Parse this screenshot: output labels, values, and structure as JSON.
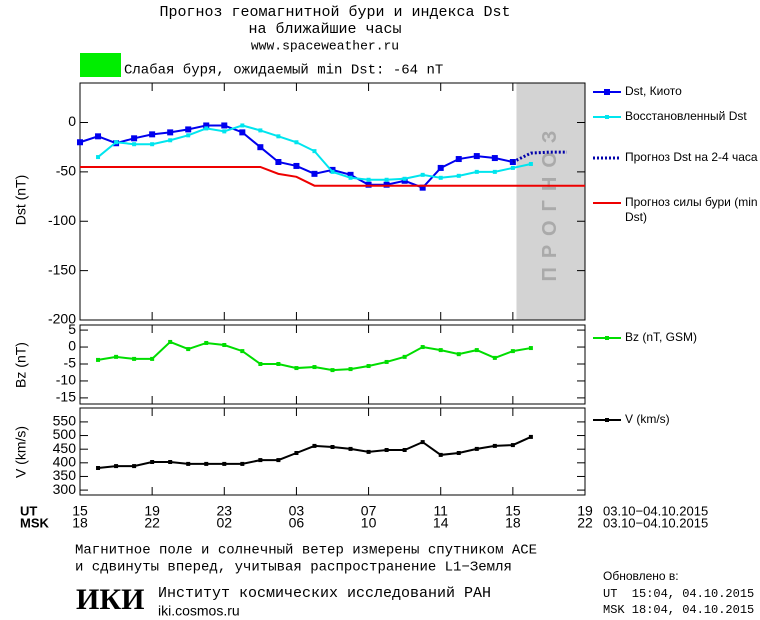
{
  "header": {
    "title_line1": "Прогноз геомагнитной бури и индекса Dst",
    "title_line2": "на ближайшие часы",
    "url": "www.spaceweather.ru",
    "storm_label": "Слабая буря, ожидаемый min Dst: -64 nT",
    "storm_color": "#00ee00"
  },
  "chart_data": [
    {
      "type": "line",
      "ylabel": "Dst (nT)",
      "xlim": [
        0,
        28
      ],
      "ylim": [
        -200,
        40
      ],
      "yticks": [
        -200,
        -150,
        -100,
        -50,
        0
      ],
      "forecast_band": {
        "xlim": [
          24.2,
          28
        ],
        "label": "ПРОГНОЗ",
        "color": "#d3d3d3"
      },
      "series": [
        {
          "name": "Dst, Киото",
          "color": "#0000ee",
          "marker": "square",
          "dash": false,
          "x": [
            0,
            1,
            2,
            3,
            4,
            5,
            6,
            7,
            8,
            9,
            10,
            11,
            12,
            13,
            14,
            15,
            16,
            17,
            18,
            19,
            20,
            21,
            22,
            23,
            24
          ],
          "values": [
            -20,
            -14,
            -21,
            -16,
            -12,
            -10,
            -7,
            -3,
            -3,
            -10,
            -25,
            -40,
            -44,
            -52,
            -48,
            -53,
            -63,
            -63,
            -59,
            -66,
            -46,
            -37,
            -34,
            -36,
            -40
          ]
        },
        {
          "name": "Восстановленный Dst",
          "color": "#00e5ee",
          "marker": "small-square",
          "dash": false,
          "x": [
            1,
            2,
            3,
            4,
            5,
            6,
            7,
            8,
            9,
            10,
            11,
            12,
            13,
            14,
            15,
            16,
            17,
            18,
            19,
            20,
            21,
            22,
            23,
            24,
            25
          ],
          "values": [
            -35,
            -20,
            -22,
            -22,
            -18,
            -13,
            -6,
            -9,
            -3,
            -8,
            -14,
            -20,
            -29,
            -50,
            -56,
            -58,
            -58,
            -57,
            -53,
            -56,
            -54,
            -50,
            -50,
            -46,
            -42
          ]
        },
        {
          "name": "Прогноз Dst на 2-4 часа",
          "color": "#0000aa",
          "marker": "none",
          "dash": true,
          "x": [
            24,
            25,
            26,
            27
          ],
          "values": [
            -40,
            -31,
            -30,
            -30
          ]
        },
        {
          "name": "Прогноз силы бури (min Dst)",
          "color": "#ee0000",
          "marker": "none",
          "dash": false,
          "x": [
            0,
            10,
            11,
            12,
            13,
            28
          ],
          "values": [
            -45,
            -45,
            -52,
            -55,
            -64,
            -64
          ]
        }
      ]
    },
    {
      "type": "line",
      "ylabel": "Bz (nT)",
      "xlim": [
        0,
        28
      ],
      "ylim": [
        -16.8,
        6.5
      ],
      "yticks": [
        -15,
        -10,
        -5,
        0,
        5
      ],
      "series": [
        {
          "name": "Bz (nT, GSM)",
          "color": "#00dd00",
          "marker": "small-square",
          "dash": false,
          "x": [
            1,
            2,
            3,
            4,
            5,
            6,
            7,
            8,
            9,
            10,
            11,
            12,
            13,
            14,
            15,
            16,
            17,
            18,
            19,
            20,
            21,
            22,
            23,
            24,
            25
          ],
          "values": [
            -3.8,
            -2.9,
            -3.5,
            -3.5,
            1.5,
            -0.6,
            1.2,
            0.6,
            -1.2,
            -5,
            -5,
            -6.2,
            -5.9,
            -6.8,
            -6.5,
            -5.6,
            -4.4,
            -2.9,
            0,
            -0.9,
            -2.1,
            -0.9,
            -3.2,
            -1.2,
            -0.3
          ]
        }
      ]
    },
    {
      "type": "line",
      "ylabel": "V (km/s)",
      "xlim": [
        0,
        28
      ],
      "ylim": [
        282,
        601
      ],
      "yticks": [
        300,
        350,
        400,
        450,
        500,
        550
      ],
      "x_label": "UT",
      "x2_label": "MSK",
      "x_range": "03.10−04.10.2015",
      "x2_range": "03.10−04.10.2015",
      "xticks": [
        {
          "value": 0,
          "label": "15"
        },
        {
          "value": 4,
          "label": "19"
        },
        {
          "value": 8,
          "label": "23"
        },
        {
          "value": 12,
          "label": "03"
        },
        {
          "value": 16,
          "label": "07"
        },
        {
          "value": 20,
          "label": "11"
        },
        {
          "value": 24,
          "label": "15"
        },
        {
          "value": 28,
          "label": "19"
        }
      ],
      "x2ticks": [
        {
          "value": 0,
          "label": "18"
        },
        {
          "value": 4,
          "label": "22"
        },
        {
          "value": 8,
          "label": "02"
        },
        {
          "value": 12,
          "label": "06"
        },
        {
          "value": 16,
          "label": "10"
        },
        {
          "value": 20,
          "label": "14"
        },
        {
          "value": 24,
          "label": "18"
        },
        {
          "value": 28,
          "label": "22"
        }
      ],
      "series": [
        {
          "name": "V (km/s)",
          "color": "#000000",
          "marker": "small-square",
          "dash": false,
          "x": [
            1,
            2,
            3,
            4,
            5,
            6,
            7,
            8,
            9,
            10,
            11,
            12,
            13,
            14,
            15,
            16,
            17,
            18,
            19,
            20,
            21,
            22,
            23,
            24,
            25
          ],
          "values": [
            381,
            388,
            388,
            403,
            403,
            396,
            396,
            396,
            396,
            410,
            410,
            436,
            462,
            458,
            451,
            440,
            447,
            447,
            476,
            429,
            436,
            451,
            462,
            465,
            495
          ]
        }
      ]
    }
  ],
  "footer": {
    "note_line1": "Магнитное поле и солнечный ветер измерены спутником ACE",
    "note_line2": "и сдвинуты вперед, учитывая распространение L1−Земля",
    "logo": "ИКИ",
    "institute": "Институт космических исследований РАН",
    "site": "iki.cosmos.ru",
    "updated": "Обновлено в:",
    "updated_ut": "UT  15:04, 04.10.2015",
    "updated_msk": "MSK 18:04, 04.10.2015"
  }
}
